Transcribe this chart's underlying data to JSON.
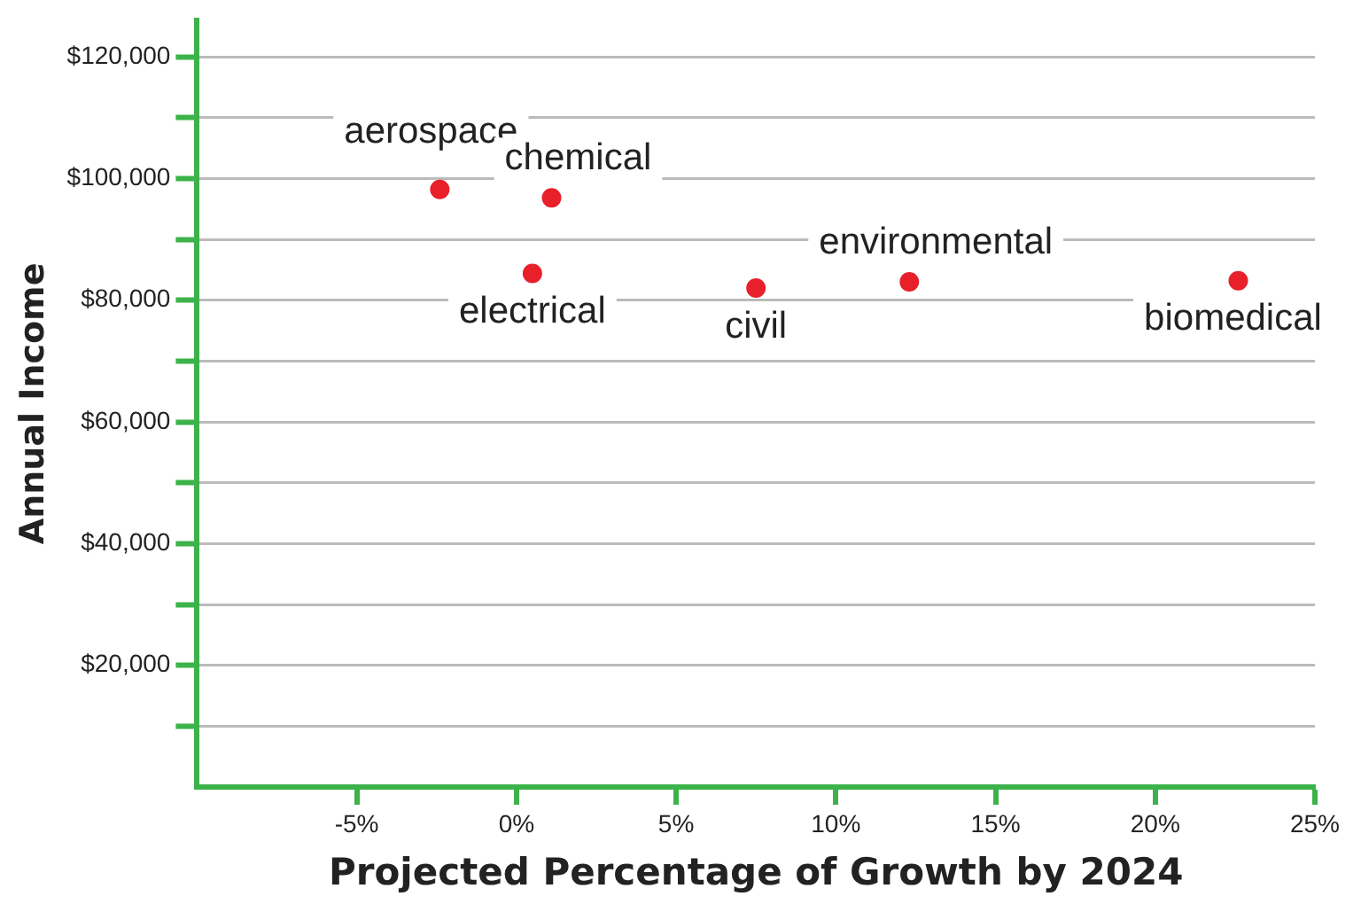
{
  "chart_data": {
    "type": "scatter",
    "xlabel": "Projected Percentage of Growth by 2024",
    "ylabel": "Annual Income",
    "series": [
      {
        "color": "#e8202a",
        "x": [
          -2.4,
          1.1,
          0.5,
          7.5,
          12.3,
          22.6
        ],
        "values": [
          98200,
          96800,
          84400,
          82000,
          83000,
          83200
        ]
      }
    ],
    "annotations": [
      {
        "text": "aerospace",
        "x": -2.4,
        "y": 98200
      },
      {
        "text": "chemical",
        "x": 1.1,
        "y": 96800
      },
      {
        "text": "electrical",
        "x": 0.5,
        "y": 84400
      },
      {
        "text": "civil",
        "x": 7.5,
        "y": 82000
      },
      {
        "text": "environmental",
        "x": 12.3,
        "y": 83000
      },
      {
        "text": "biomedical",
        "x": 22.6,
        "y": 83200
      }
    ],
    "xlim": [
      -10,
      25
    ],
    "xticks": [
      {
        "value": -5,
        "label": "-5%"
      },
      {
        "value": 0,
        "label": "0%"
      },
      {
        "value": 5,
        "label": "5%"
      },
      {
        "value": 10,
        "label": "10%"
      },
      {
        "value": 15,
        "label": "15%"
      },
      {
        "value": 20,
        "label": "20%"
      },
      {
        "value": 25,
        "label": "25%"
      }
    ],
    "ylim": [
      0,
      126000
    ],
    "yticks": [
      {
        "value": 10000,
        "label": null
      },
      {
        "value": 20000,
        "label": "$20,000"
      },
      {
        "value": 30000,
        "label": null
      },
      {
        "value": 40000,
        "label": "$40,000"
      },
      {
        "value": 50000,
        "label": null
      },
      {
        "value": 60000,
        "label": "$60,000"
      },
      {
        "value": 70000,
        "label": null
      },
      {
        "value": 80000,
        "label": "$80,000"
      },
      {
        "value": 90000,
        "label": null
      },
      {
        "value": 100000,
        "label": "$100,000"
      },
      {
        "value": 110000,
        "label": null
      },
      {
        "value": 120000,
        "label": "$120,000"
      }
    ],
    "grid": "y",
    "marker": "circle",
    "legend": false
  }
}
